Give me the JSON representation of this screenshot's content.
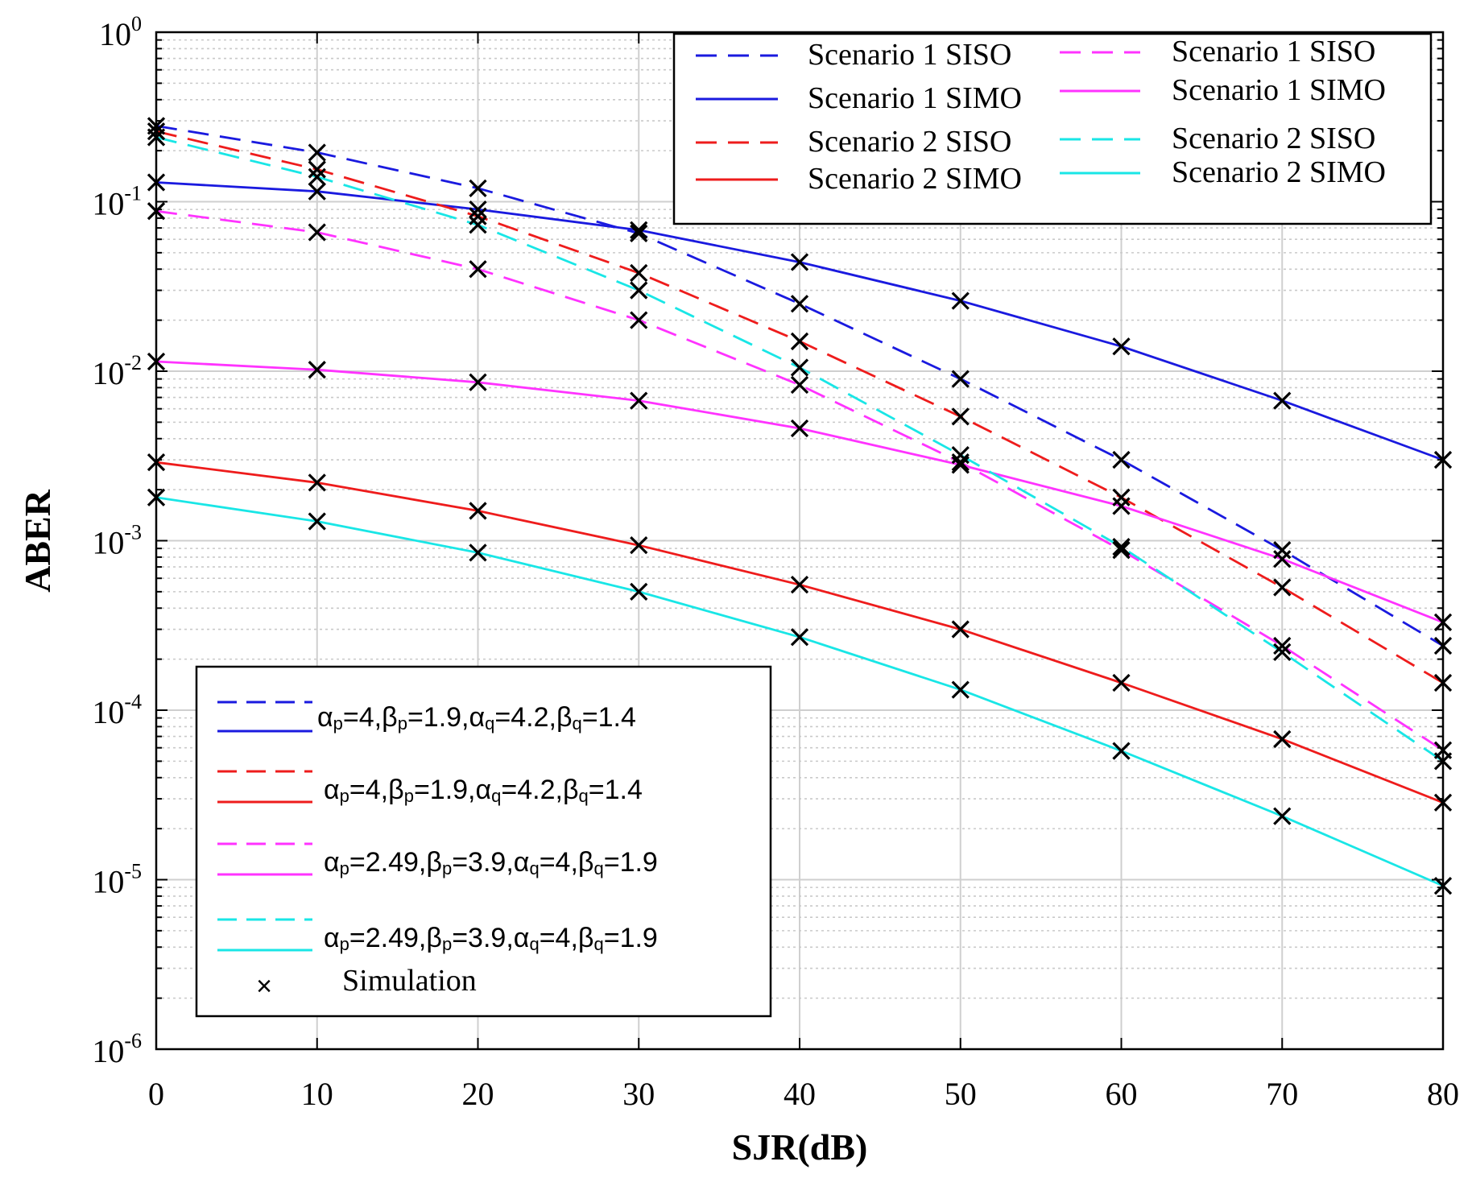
{
  "chart_data": {
    "type": "line",
    "title": "",
    "xlabel": "SJR(dB)",
    "ylabel": "ABER",
    "xlim": [
      0,
      80
    ],
    "ylim": [
      1e-06,
      1
    ],
    "yscale": "log",
    "grid": true,
    "x": [
      0,
      10,
      20,
      30,
      40,
      50,
      60,
      70,
      80
    ],
    "x_ticks": [
      "0",
      "10",
      "20",
      "30",
      "40",
      "50",
      "60",
      "70",
      "80"
    ],
    "y_ticks": [
      {
        "base": "10",
        "exp": "0",
        "value": 1
      },
      {
        "base": "10",
        "exp": "-1",
        "value": 0.1
      },
      {
        "base": "10",
        "exp": "-2",
        "value": 0.01
      },
      {
        "base": "10",
        "exp": "-3",
        "value": 0.001
      },
      {
        "base": "10",
        "exp": "-4",
        "value": 0.0001
      },
      {
        "base": "10",
        "exp": "-5",
        "value": 1e-05
      },
      {
        "base": "10",
        "exp": "-6",
        "value": 1e-06
      }
    ],
    "series": [
      {
        "name": "Scenario 1 SISO",
        "color": "#1a1adf",
        "dash": true,
        "values": [
          0.28,
          0.195,
          0.12,
          0.065,
          0.025,
          0.009,
          0.003,
          0.00088,
          0.00024
        ]
      },
      {
        "name": "Scenario 1 SIMO",
        "color": "#1a1adf",
        "dash": false,
        "values": [
          0.13,
          0.115,
          0.09,
          0.068,
          0.044,
          0.026,
          0.014,
          0.0067,
          0.003
        ]
      },
      {
        "name": "Scenario 2 SISO",
        "color": "#ee1c1c",
        "dash": true,
        "values": [
          0.26,
          0.155,
          0.082,
          0.038,
          0.015,
          0.0054,
          0.0018,
          0.00053,
          0.000145
        ]
      },
      {
        "name": "Scenario 2 SIMO",
        "color": "#ee1c1c",
        "dash": false,
        "values": [
          0.0029,
          0.0022,
          0.0015,
          0.00094,
          0.00055,
          0.0003,
          0.000145,
          6.75e-05,
          2.85e-05
        ]
      },
      {
        "name": "Scenario 1 SISO",
        "color": "#ff33ff",
        "dash": true,
        "values": [
          0.088,
          0.066,
          0.04,
          0.02,
          0.0083,
          0.0029,
          0.00088,
          0.00024,
          5.8e-05
        ]
      },
      {
        "name": "Scenario 1 SIMO",
        "color": "#ff33ff",
        "dash": false,
        "values": [
          0.0114,
          0.0102,
          0.0086,
          0.0067,
          0.0046,
          0.0028,
          0.0016,
          0.00078,
          0.00033
        ]
      },
      {
        "name": "Scenario 2 SISO",
        "color": "#19e6e6",
        "dash": true,
        "values": [
          0.24,
          0.14,
          0.073,
          0.03,
          0.0105,
          0.0032,
          0.00092,
          0.00022,
          5e-05
        ]
      },
      {
        "name": "Scenario 2 SIMO",
        "color": "#19e6e6",
        "dash": false,
        "values": [
          0.0018,
          0.0013,
          0.00085,
          0.0005,
          0.00027,
          0.000132,
          5.75e-05,
          2.37e-05,
          9.2e-06
        ]
      }
    ],
    "legend_top": {
      "placement": "top-right",
      "col1": [
        "Scenario 1 SISO",
        "Scenario 1 SIMO",
        "Scenario 2 SISO",
        "Scenario 2 SIMO"
      ],
      "col2": [
        "Scenario 1 SISO",
        "Scenario 1 SIMO",
        "Scenario 2 SISO",
        "Scenario 2 SIMO"
      ]
    },
    "legend_bottom": {
      "placement": "bottom-left",
      "params": [
        {
          "ap": "4",
          "bp": "1.9",
          "aq": "4.2",
          "bq": "1.4"
        },
        {
          "ap": "4",
          "bp": "1.9",
          "aq": "4.2",
          "bq": "1.4"
        },
        {
          "ap": "2.49",
          "bp": "3.9",
          "aq": "4",
          "bq": "1.9"
        },
        {
          "ap": "2.49",
          "bp": "3.9",
          "aq": "4",
          "bq": "1.9"
        }
      ],
      "simulation_label": "Simulation",
      "simulation_marker": "×"
    }
  }
}
